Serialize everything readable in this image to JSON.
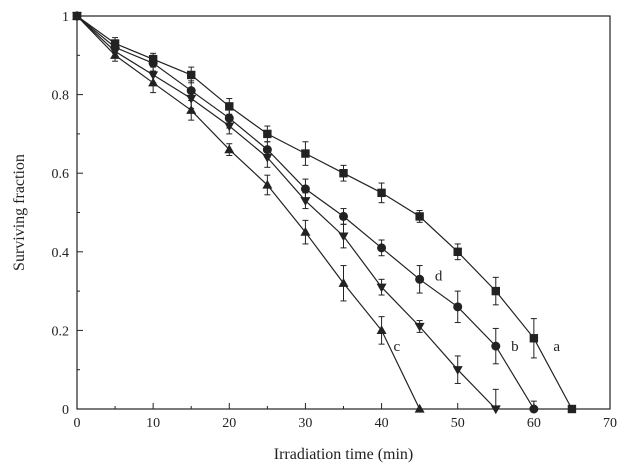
{
  "chart_data": {
    "type": "line",
    "xlabel": "Irradiation time (min)",
    "ylabel": "Surviving fraction",
    "xlim": [
      0,
      70
    ],
    "ylim": [
      0,
      1
    ],
    "xticks": [
      "0",
      "10",
      "20",
      "30",
      "40",
      "50",
      "60",
      "70"
    ],
    "yticks": [
      "0",
      "0.2",
      "0.4",
      "0.6",
      "0.8",
      "1"
    ],
    "grid": false,
    "color": "#222222",
    "series": [
      {
        "name": "a",
        "marker": "square",
        "x": [
          0,
          5,
          10,
          15,
          20,
          25,
          30,
          35,
          40,
          45,
          50,
          55,
          60,
          65
        ],
        "y": [
          1.0,
          0.93,
          0.89,
          0.85,
          0.77,
          0.7,
          0.65,
          0.6,
          0.55,
          0.49,
          0.4,
          0.3,
          0.18,
          0.0
        ],
        "err": [
          0,
          0.015,
          0.015,
          0.02,
          0.02,
          0.02,
          0.03,
          0.02,
          0.025,
          0.015,
          0.02,
          0.035,
          0.05,
          0
        ],
        "label_at": [
          63,
          0.16
        ]
      },
      {
        "name": "b",
        "marker": "circle",
        "x": [
          0,
          5,
          10,
          15,
          20,
          25,
          30,
          35,
          40,
          45,
          50,
          55,
          60
        ],
        "y": [
          1.0,
          0.92,
          0.88,
          0.81,
          0.74,
          0.66,
          0.56,
          0.49,
          0.41,
          0.33,
          0.26,
          0.16,
          0.0
        ],
        "err": [
          0,
          0.015,
          0.02,
          0.025,
          0.025,
          0.02,
          0.025,
          0.02,
          0.02,
          0.035,
          0.04,
          0.045,
          0.02
        ],
        "label_at": [
          57.5,
          0.16
        ]
      },
      {
        "name": "c",
        "marker": "triangle-up",
        "x": [
          0,
          5,
          10,
          15,
          20,
          25,
          30,
          35,
          40,
          45
        ],
        "y": [
          1.0,
          0.9,
          0.83,
          0.76,
          0.66,
          0.57,
          0.45,
          0.32,
          0.2,
          0.0
        ],
        "err": [
          0,
          0.015,
          0.025,
          0.025,
          0.015,
          0.025,
          0.03,
          0.045,
          0.035,
          0
        ],
        "label_at": [
          42,
          0.16
        ]
      },
      {
        "name": "d",
        "marker": "triangle-down",
        "x": [
          0,
          5,
          10,
          15,
          20,
          25,
          30,
          35,
          40,
          45,
          50,
          55
        ],
        "y": [
          1.0,
          0.91,
          0.85,
          0.79,
          0.72,
          0.64,
          0.53,
          0.44,
          0.31,
          0.21,
          0.1,
          0.0
        ],
        "err": [
          0,
          0.015,
          0.02,
          0.025,
          0.02,
          0.025,
          0.02,
          0.03,
          0.02,
          0.015,
          0.035,
          0.05
        ],
        "label_at": [
          47.5,
          0.34
        ]
      }
    ]
  }
}
